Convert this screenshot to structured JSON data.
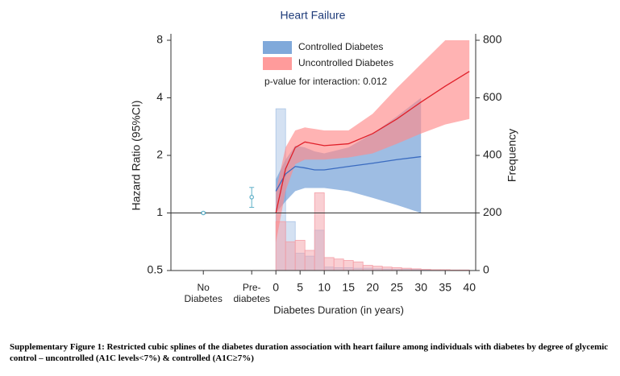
{
  "chart_data": {
    "type": "spline",
    "title": "Heart Failure",
    "ylabel": "Hazard Ratio (95%CI)",
    "y2label": "Frequency",
    "xlabel": "Diabetes Duration (in years)",
    "annotation": "p-value for interaction: 0.012",
    "caption": "Supplementary Figure 1: Restricted cubic splines of the diabetes duration association with heart failure among individuals with diabetes by degree of glycemic control – uncontrolled (A1C levels<7%) & controlled (A1C≥7%)",
    "ylog": true,
    "xlim": [
      -21.7,
      41.3
    ],
    "ylim": [
      0.5,
      8
    ],
    "y2lim": [
      0,
      800
    ],
    "xticks": [
      {
        "value": -15,
        "label": "No Diabetes"
      },
      {
        "value": -5,
        "label": "Pre-diabetes"
      },
      0,
      5,
      10,
      15,
      20,
      25,
      30,
      35,
      40
    ],
    "yticks": [
      0.5,
      1,
      2,
      4,
      8
    ],
    "y2ticks": [
      0,
      200,
      400,
      600,
      800
    ],
    "hline": 1,
    "series": [
      {
        "name": "Controlled Diabetes",
        "color": "#6a9ad4",
        "line_color": "#3a6bc0",
        "x": [
          0,
          2,
          4,
          6,
          8,
          10,
          15,
          20,
          25,
          30
        ],
        "values": [
          1.3,
          1.6,
          1.75,
          1.72,
          1.68,
          1.68,
          1.75,
          1.82,
          1.9,
          1.97
        ],
        "lower": [
          1.0,
          1.15,
          1.3,
          1.35,
          1.35,
          1.35,
          1.3,
          1.2,
          1.1,
          1.0
        ],
        "upper": [
          1.5,
          1.9,
          2.25,
          2.2,
          2.1,
          2.05,
          2.2,
          2.6,
          3.2,
          4.0
        ]
      },
      {
        "name": "Uncontrolled Diabetes",
        "color": "#ff8a8a",
        "line_color": "#e0202a",
        "x": [
          0,
          2,
          4,
          6,
          8,
          10,
          15,
          20,
          25,
          30,
          35,
          40
        ],
        "values": [
          1.0,
          1.7,
          2.2,
          2.35,
          2.3,
          2.25,
          2.3,
          2.6,
          3.1,
          3.8,
          4.6,
          5.5
        ],
        "lower": [
          0.7,
          1.3,
          1.8,
          1.9,
          1.9,
          1.9,
          1.95,
          2.05,
          2.3,
          2.6,
          2.9,
          3.1
        ],
        "upper": [
          1.3,
          2.2,
          2.7,
          2.8,
          2.75,
          2.7,
          2.7,
          3.3,
          4.5,
          6.0,
          8.0,
          8.0
        ]
      }
    ],
    "histograms": [
      {
        "color": "#a9c4e6",
        "axis": "y2",
        "bins": [
          0,
          2,
          4,
          6,
          8,
          10,
          12,
          14,
          16,
          18,
          20,
          22,
          24,
          26,
          28,
          30,
          32,
          34,
          36,
          38,
          40
        ],
        "counts": [
          562,
          170,
          60,
          50,
          140,
          12,
          10,
          10,
          8,
          8,
          6,
          5,
          4,
          4,
          3,
          2,
          0,
          0,
          0,
          0
        ]
      },
      {
        "color": "#f4a0a8",
        "axis": "y2",
        "bins": [
          0,
          2,
          4,
          6,
          8,
          10,
          12,
          14,
          16,
          18,
          20,
          22,
          24,
          26,
          28,
          30,
          32,
          34,
          36,
          38,
          40
        ],
        "counts": [
          170,
          100,
          105,
          70,
          270,
          45,
          40,
          35,
          30,
          18,
          15,
          12,
          10,
          8,
          6,
          4,
          3,
          3,
          2,
          2
        ]
      }
    ],
    "points": {
      "color": "#5fb0c8",
      "x": [
        -15,
        -5
      ],
      "values": [
        1.0,
        1.21
      ],
      "lower": [
        0.99,
        1.07
      ],
      "upper": [
        1.01,
        1.36
      ]
    }
  }
}
